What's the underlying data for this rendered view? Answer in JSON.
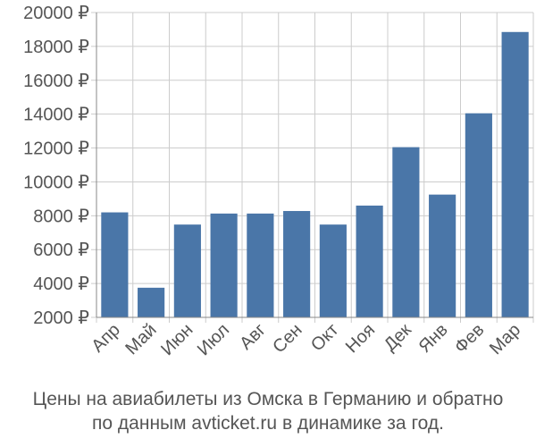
{
  "chart_data": {
    "type": "bar",
    "categories": [
      "Апр",
      "Май",
      "Июн",
      "Июл",
      "Авг",
      "Сен",
      "Окт",
      "Ноя",
      "Дек",
      "Янв",
      "Фев",
      "Мар"
    ],
    "values": [
      8200,
      3750,
      7480,
      8130,
      8130,
      8280,
      7480,
      8600,
      12050,
      9250,
      14050,
      18850
    ],
    "y_tick_labels": [
      "2000 ₽",
      "4000 ₽",
      "6000 ₽",
      "8000 ₽",
      "10000 ₽",
      "12000 ₽",
      "14000 ₽",
      "16000 ₽",
      "18000 ₽",
      "20000 ₽"
    ],
    "y_ticks": [
      2000,
      4000,
      6000,
      8000,
      10000,
      12000,
      14000,
      16000,
      18000,
      20000
    ],
    "ylim": [
      2000,
      20000
    ],
    "grid": true,
    "bar_color": "#4a76a8",
    "grid_color": "#cccccc",
    "axis_color": "#888888",
    "label_color": "#555555"
  },
  "caption": {
    "line1": "Цены на авиабилеты из Омска в Германию и обратно",
    "line2": "по данным avticket.ru в динамике за год."
  }
}
